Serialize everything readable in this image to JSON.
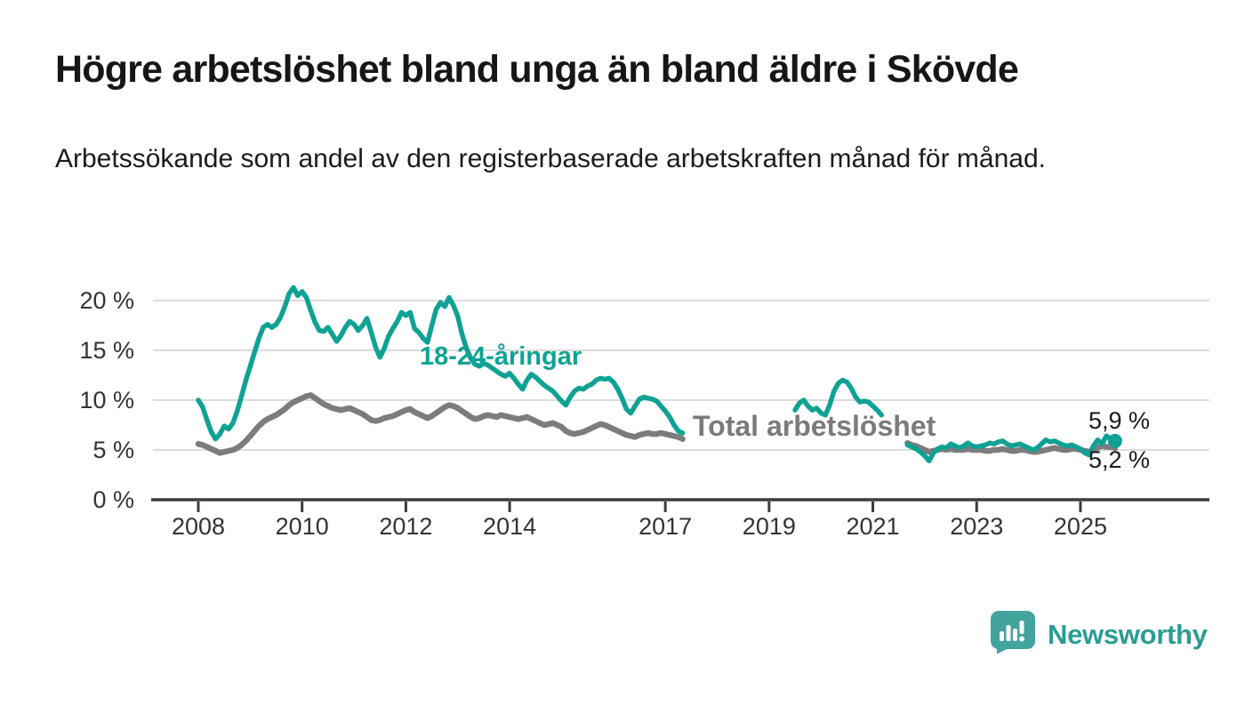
{
  "header": {
    "title": "Högre arbetslöshet bland unga än bland äldre i Skövde",
    "subtitle": "Arbetssökande som andel av den registerbaserade arbetskraften månad för månad."
  },
  "chart_data": {
    "type": "line",
    "title": "Högre arbetslöshet bland unga än bland äldre i Skövde",
    "unit": "percent of registered labour force",
    "frequency": "monthly",
    "x_start": "2008-01",
    "x_end": "2025-09",
    "ylim": [
      0,
      22.5
    ],
    "grid": "horizontal",
    "legend_position": "inline-labels",
    "y_axis": {
      "ticks": [
        {
          "value": 0,
          "label": "0 %"
        },
        {
          "value": 5,
          "label": "5 %"
        },
        {
          "value": 10,
          "label": "10 %"
        },
        {
          "value": 15,
          "label": "15 %"
        },
        {
          "value": 20,
          "label": "20 %"
        }
      ]
    },
    "x_axis": {
      "ticks": [
        {
          "year": 2008,
          "label": "2008"
        },
        {
          "year": 2010,
          "label": "2010"
        },
        {
          "year": 2012,
          "label": "2012"
        },
        {
          "year": 2014,
          "label": "2014"
        },
        {
          "year": 2017,
          "label": "2017"
        },
        {
          "year": 2019,
          "label": "2019"
        },
        {
          "year": 2021,
          "label": "2021"
        },
        {
          "year": 2023,
          "label": "2023"
        },
        {
          "year": 2025,
          "label": "2025"
        }
      ]
    },
    "style": {
      "grid_color": "#dcdcdc",
      "axis_color": "#3c3c3c",
      "tick_text_color": "#333333",
      "background": "#ffffff"
    },
    "series": [
      {
        "id": "youth",
        "name": "18-24-åringar",
        "inline_label": "18-24-åringar",
        "color": "#0fa294",
        "end_label": "5,9 %",
        "end_value": 5.9,
        "end_marker": true,
        "values": [
          10.0,
          9.3,
          8.0,
          6.8,
          6.1,
          6.6,
          7.4,
          7.1,
          7.7,
          8.9,
          10.4,
          12.0,
          13.4,
          14.8,
          16.2,
          17.3,
          17.6,
          17.3,
          17.6,
          18.3,
          19.4,
          20.7,
          21.3,
          20.5,
          20.9,
          20.3,
          19.0,
          17.8,
          17.0,
          16.9,
          17.3,
          16.6,
          15.9,
          16.5,
          17.3,
          17.9,
          17.6,
          17.0,
          17.5,
          18.2,
          16.8,
          15.3,
          14.3,
          15.2,
          16.4,
          17.2,
          17.9,
          18.8,
          18.5,
          18.8,
          17.2,
          16.8,
          16.2,
          15.8,
          17.5,
          19.1,
          19.8,
          19.4,
          20.3,
          19.5,
          18.4,
          16.6,
          15.2,
          14.2,
          13.6,
          13.4,
          13.7,
          13.5,
          13.2,
          12.9,
          12.6,
          12.4,
          12.7,
          12.2,
          11.6,
          11.1,
          12.0,
          12.6,
          12.3,
          11.9,
          11.5,
          11.2,
          10.9,
          10.4,
          9.9,
          9.5,
          10.3,
          10.9,
          11.2,
          11.1,
          11.4,
          11.6,
          12.0,
          12.2,
          12.1,
          12.2,
          11.8,
          11.1,
          10.2,
          9.1,
          8.7,
          9.4,
          10.1,
          10.3,
          10.2,
          10.1,
          9.9,
          9.4,
          8.9,
          8.3,
          7.5,
          6.9,
          6.7,
          null,
          null,
          null,
          null,
          null,
          null,
          null,
          null,
          null,
          null,
          null,
          null,
          null,
          null,
          null,
          null,
          null,
          null,
          null,
          null,
          null,
          null,
          null,
          null,
          null,
          9.0,
          9.7,
          10.0,
          9.4,
          9.0,
          9.2,
          8.7,
          8.5,
          9.5,
          10.9,
          11.7,
          12.0,
          11.8,
          11.2,
          10.3,
          9.8,
          9.9,
          9.8,
          9.4,
          9.0,
          8.5,
          null,
          null,
          null,
          null,
          null,
          5.5,
          5.3,
          5.1,
          4.8,
          4.4,
          3.9,
          4.7,
          5.1,
          5.3,
          5.2,
          5.6,
          5.4,
          5.2,
          5.4,
          5.7,
          5.4,
          5.3,
          5.4,
          5.5,
          5.7,
          5.6,
          5.8,
          5.9,
          5.6,
          5.4,
          5.5,
          5.6,
          5.4,
          5.2,
          5.0,
          5.2,
          5.6,
          6.0,
          5.8,
          5.9,
          5.7,
          5.5,
          5.4,
          5.5,
          5.3,
          5.1,
          4.7,
          4.5,
          5.4,
          6.0,
          5.6,
          6.4,
          6.1,
          5.9
        ]
      },
      {
        "id": "total",
        "name": "Total arbetslöshet",
        "inline_label": "Total arbetslöshet",
        "color": "#7c7c7c",
        "end_label": "5,2 %",
        "end_value": 5.2,
        "end_marker": false,
        "values": [
          5.6,
          5.5,
          5.3,
          5.1,
          4.9,
          4.7,
          4.8,
          4.9,
          5.0,
          5.2,
          5.5,
          5.9,
          6.4,
          6.9,
          7.4,
          7.8,
          8.1,
          8.3,
          8.5,
          8.8,
          9.1,
          9.5,
          9.8,
          10.0,
          10.2,
          10.4,
          10.5,
          10.2,
          9.9,
          9.6,
          9.4,
          9.2,
          9.1,
          9.0,
          9.1,
          9.2,
          9.0,
          8.8,
          8.6,
          8.3,
          8.0,
          7.9,
          8.0,
          8.2,
          8.3,
          8.4,
          8.6,
          8.8,
          9.0,
          9.1,
          8.8,
          8.6,
          8.4,
          8.2,
          8.4,
          8.7,
          9.0,
          9.3,
          9.5,
          9.4,
          9.2,
          8.9,
          8.6,
          8.3,
          8.1,
          8.2,
          8.4,
          8.5,
          8.4,
          8.3,
          8.5,
          8.4,
          8.3,
          8.2,
          8.1,
          8.2,
          8.3,
          8.1,
          7.9,
          7.7,
          7.5,
          7.6,
          7.7,
          7.5,
          7.3,
          6.9,
          6.7,
          6.6,
          6.7,
          6.8,
          7.0,
          7.2,
          7.4,
          7.6,
          7.5,
          7.3,
          7.1,
          6.9,
          6.7,
          6.5,
          6.4,
          6.3,
          6.5,
          6.6,
          6.7,
          6.6,
          6.6,
          6.7,
          6.6,
          6.5,
          6.4,
          6.3,
          6.1,
          null,
          null,
          null,
          null,
          null,
          null,
          null,
          null,
          null,
          null,
          null,
          null,
          null,
          null,
          null,
          null,
          null,
          null,
          null,
          null,
          null,
          null,
          null,
          null,
          null,
          null,
          null,
          null,
          null,
          null,
          null,
          null,
          null,
          null,
          null,
          null,
          null,
          null,
          null,
          null,
          null,
          null,
          null,
          null,
          null,
          null,
          null,
          null,
          null,
          null,
          null,
          5.7,
          5.5,
          5.4,
          5.2,
          5.0,
          4.8,
          4.9,
          5.0,
          5.1,
          5.0,
          5.1,
          5.0,
          5.0,
          5.0,
          5.1,
          5.0,
          5.0,
          5.0,
          4.9,
          4.9,
          5.0,
          5.0,
          5.1,
          5.0,
          4.9,
          4.9,
          5.0,
          5.0,
          4.9,
          4.8,
          4.8,
          4.9,
          5.0,
          5.1,
          5.2,
          5.1,
          5.0,
          5.0,
          5.1,
          5.1,
          5.0,
          4.9,
          4.8,
          5.0,
          5.2,
          5.4,
          5.3,
          5.3,
          5.2
        ]
      }
    ]
  },
  "branding": {
    "name": "Newsworthy",
    "color": "#2b9c95",
    "icon": "newsworthy-speech-bubble-chart-icon"
  }
}
